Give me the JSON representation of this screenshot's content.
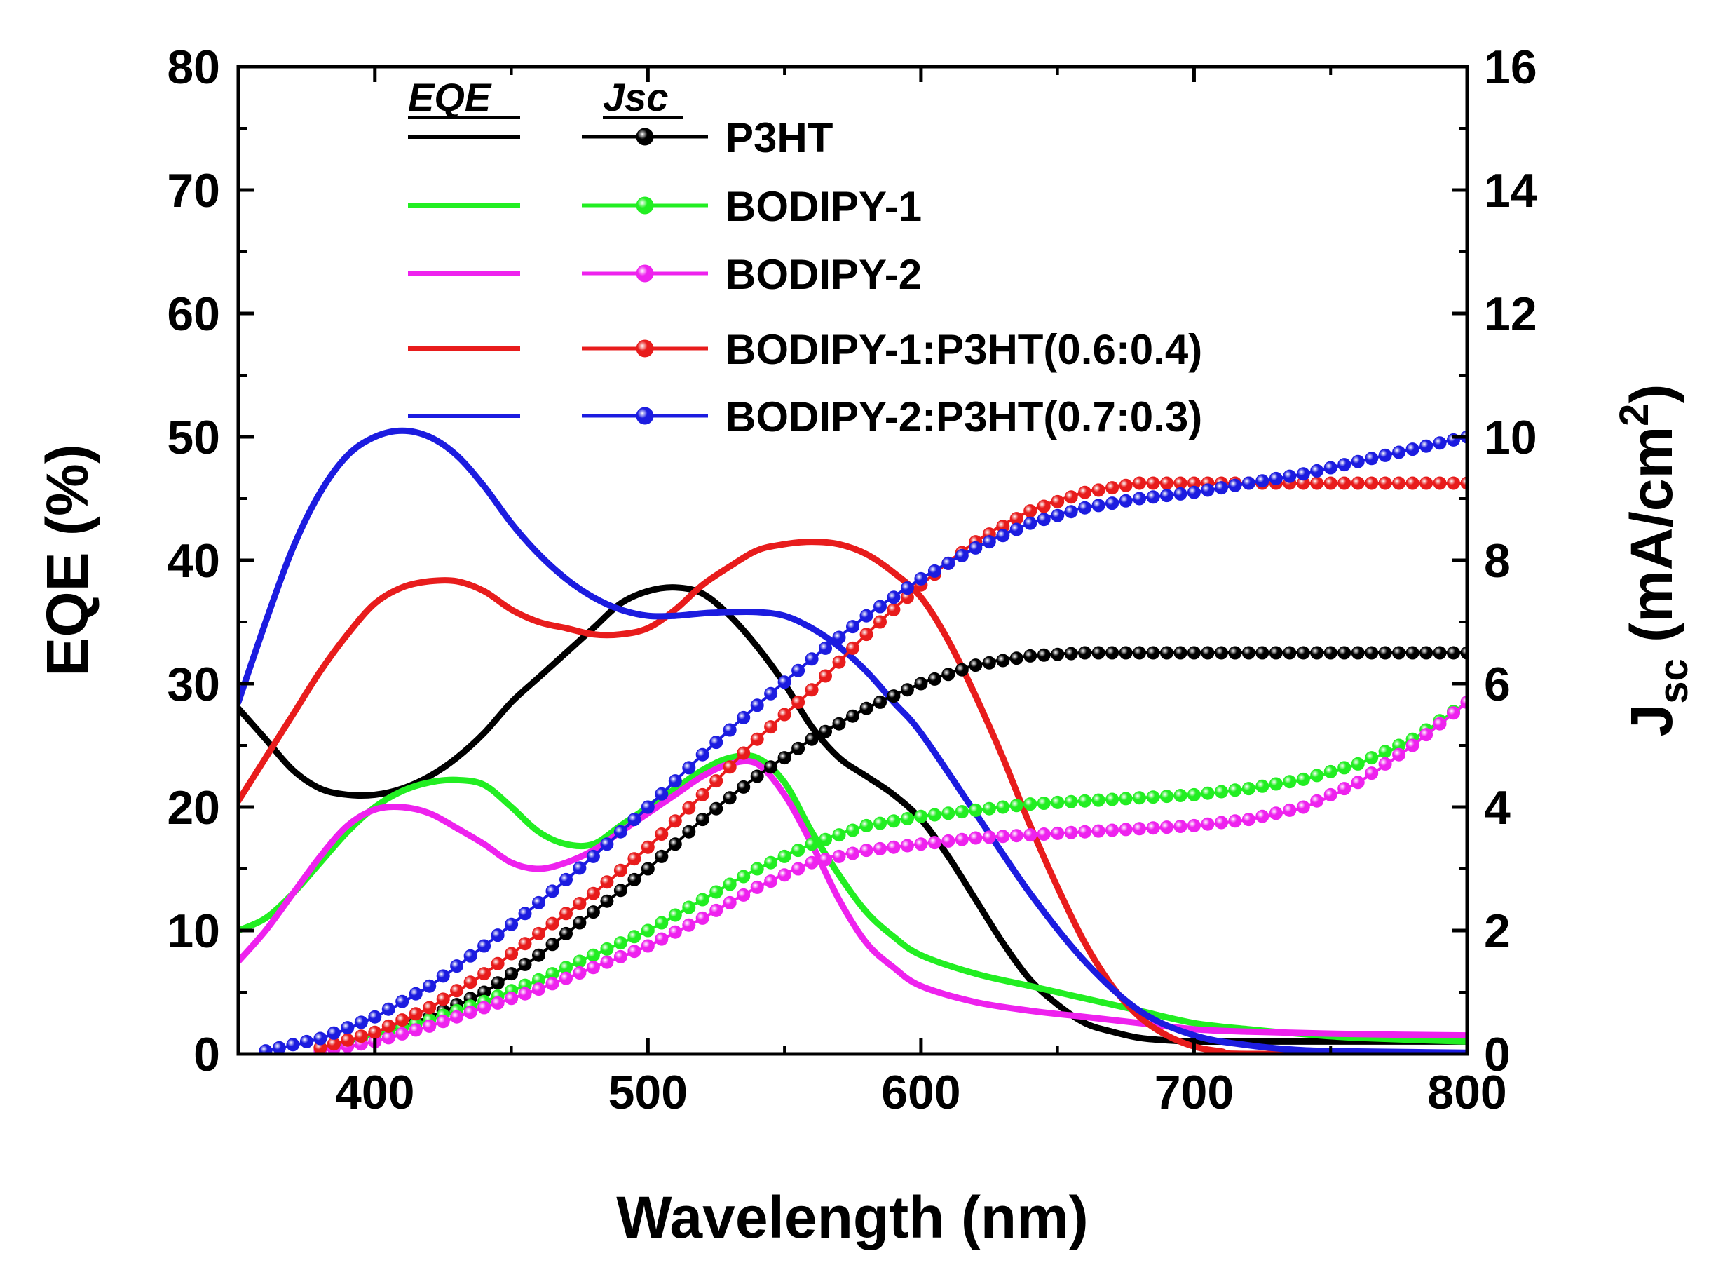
{
  "chart_data": {
    "type": "line",
    "xlabel": "Wavelength (nm)",
    "ylabel": "EQE (%)",
    "y2label": {
      "main": "J",
      "sub": "sc",
      "paren_open": " (mA/cm",
      "sup": "2",
      "paren_close": ")"
    },
    "xlim": [
      350,
      800
    ],
    "ylim": [
      0,
      80
    ],
    "y2lim": [
      0,
      16
    ],
    "xticks": [
      400,
      500,
      600,
      700,
      800
    ],
    "yticks": [
      0,
      10,
      20,
      30,
      40,
      50,
      60,
      70,
      80
    ],
    "y2ticks": [
      0,
      2,
      4,
      6,
      8,
      10,
      12,
      14,
      16
    ],
    "legend": {
      "position": "top-left",
      "eqe_header": "EQE",
      "jsc_header": "Jsc"
    },
    "series": [
      {
        "name": "P3HT",
        "color": "#000000",
        "eqe": {
          "x": [
            350,
            360,
            370,
            380,
            390,
            400,
            410,
            420,
            430,
            440,
            450,
            460,
            470,
            480,
            490,
            500,
            510,
            520,
            530,
            540,
            550,
            560,
            570,
            580,
            590,
            600,
            610,
            620,
            630,
            640,
            650,
            660,
            670,
            680,
            690,
            700,
            720,
            800
          ],
          "y": [
            28,
            25.5,
            23,
            21.5,
            21,
            21,
            21.5,
            22.5,
            24,
            26,
            28.5,
            30.5,
            32.5,
            34.5,
            36.5,
            37.5,
            37.8,
            37.3,
            35.5,
            33,
            30,
            26.5,
            24,
            22.5,
            21,
            19,
            16,
            12.5,
            9,
            6,
            4,
            2.5,
            1.8,
            1.3,
            1.1,
            1,
            1,
            1
          ]
        },
        "jsc": {
          "x": [
            380,
            400,
            420,
            440,
            460,
            480,
            500,
            520,
            540,
            560,
            580,
            600,
            620,
            640,
            660,
            680,
            700,
            720,
            740,
            760,
            780,
            800
          ],
          "y": [
            0.1,
            0.3,
            0.6,
            1.0,
            1.6,
            2.3,
            3.0,
            3.8,
            4.5,
            5.1,
            5.6,
            6.0,
            6.3,
            6.45,
            6.5,
            6.5,
            6.5,
            6.5,
            6.5,
            6.5,
            6.5,
            6.5
          ]
        }
      },
      {
        "name": "BODIPY-1",
        "color": "#22ee22",
        "eqe": {
          "x": [
            350,
            360,
            370,
            380,
            390,
            400,
            410,
            420,
            430,
            440,
            450,
            460,
            470,
            480,
            490,
            500,
            510,
            520,
            530,
            540,
            550,
            560,
            570,
            580,
            590,
            600,
            620,
            640,
            660,
            680,
            700,
            720,
            740,
            760,
            800
          ],
          "y": [
            10,
            11,
            13,
            15.5,
            18,
            20,
            21.3,
            22,
            22.2,
            21.8,
            20,
            18,
            17,
            17,
            18.5,
            20,
            21.5,
            23,
            24,
            24,
            22,
            18,
            14.5,
            11.5,
            9.5,
            8,
            6.5,
            5.5,
            4.5,
            3.5,
            2.5,
            2,
            1.6,
            1.3,
            1
          ]
        },
        "jsc": {
          "x": [
            380,
            400,
            420,
            440,
            460,
            480,
            500,
            520,
            540,
            560,
            580,
            600,
            620,
            640,
            660,
            680,
            700,
            720,
            740,
            760,
            780,
            800
          ],
          "y": [
            0.1,
            0.3,
            0.55,
            0.85,
            1.2,
            1.6,
            2.0,
            2.5,
            3.0,
            3.4,
            3.7,
            3.85,
            3.95,
            4.05,
            4.1,
            4.15,
            4.2,
            4.3,
            4.45,
            4.7,
            5.1,
            5.7
          ]
        }
      },
      {
        "name": "BODIPY-2",
        "color": "#ee22ee",
        "eqe": {
          "x": [
            350,
            360,
            370,
            380,
            390,
            400,
            410,
            420,
            430,
            440,
            450,
            460,
            470,
            480,
            490,
            500,
            510,
            520,
            530,
            540,
            550,
            560,
            570,
            580,
            590,
            600,
            620,
            640,
            660,
            680,
            700,
            720,
            760,
            800
          ],
          "y": [
            7.5,
            10,
            13,
            16,
            18.5,
            19.8,
            20,
            19.5,
            18.3,
            17,
            15.5,
            15,
            15.5,
            16.5,
            18,
            19.5,
            21,
            22.5,
            23.5,
            23.5,
            21,
            17,
            12.5,
            9,
            7,
            5.5,
            4.2,
            3.5,
            3,
            2.5,
            2,
            1.8,
            1.6,
            1.5
          ]
        },
        "jsc": {
          "x": [
            380,
            400,
            420,
            440,
            460,
            480,
            500,
            520,
            540,
            560,
            580,
            600,
            620,
            640,
            660,
            680,
            700,
            720,
            740,
            760,
            780,
            800
          ],
          "y": [
            0.05,
            0.2,
            0.45,
            0.75,
            1.05,
            1.4,
            1.75,
            2.2,
            2.7,
            3.1,
            3.3,
            3.4,
            3.5,
            3.55,
            3.6,
            3.65,
            3.7,
            3.8,
            4.0,
            4.4,
            5.0,
            5.7
          ]
        }
      },
      {
        "name": "BODIPY-1:P3HT(0.6:0.4)",
        "color": "#e81c1c",
        "eqe": {
          "x": [
            350,
            360,
            370,
            380,
            390,
            400,
            410,
            420,
            430,
            440,
            450,
            460,
            470,
            480,
            490,
            500,
            510,
            520,
            530,
            540,
            550,
            560,
            570,
            580,
            590,
            600,
            610,
            620,
            630,
            640,
            650,
            660,
            670,
            680,
            690,
            700,
            710,
            720,
            800
          ],
          "y": [
            20.5,
            24,
            27.5,
            31,
            34,
            36.5,
            37.8,
            38.3,
            38.3,
            37.5,
            36,
            35,
            34.5,
            34,
            34,
            34.5,
            36,
            38,
            39.5,
            40.8,
            41.3,
            41.5,
            41.3,
            40.5,
            39,
            37,
            33.5,
            29,
            24,
            18.5,
            13.5,
            9,
            5.5,
            3,
            1.5,
            0.6,
            0.2,
            0,
            0
          ]
        },
        "jsc": {
          "x": [
            380,
            400,
            420,
            440,
            460,
            480,
            500,
            520,
            540,
            560,
            580,
            600,
            620,
            640,
            660,
            680,
            700,
            720,
            740,
            760,
            780,
            800
          ],
          "y": [
            0.1,
            0.35,
            0.75,
            1.3,
            1.95,
            2.6,
            3.35,
            4.2,
            5.1,
            5.9,
            6.8,
            7.6,
            8.3,
            8.8,
            9.1,
            9.25,
            9.25,
            9.25,
            9.25,
            9.25,
            9.25,
            9.25
          ]
        }
      },
      {
        "name": "BODIPY-2:P3HT(0.7:0.3)",
        "color": "#1c1ce0",
        "eqe": {
          "x": [
            350,
            360,
            370,
            380,
            390,
            400,
            410,
            420,
            430,
            440,
            450,
            460,
            470,
            480,
            490,
            500,
            510,
            520,
            530,
            540,
            550,
            560,
            570,
            580,
            590,
            600,
            620,
            640,
            660,
            680,
            700,
            720,
            740,
            760,
            780,
            800
          ],
          "y": [
            28.5,
            35,
            41,
            45.5,
            48.5,
            50,
            50.5,
            50,
            48.5,
            46,
            43,
            40.5,
            38.5,
            37,
            36,
            35.5,
            35.5,
            35.7,
            35.8,
            35.8,
            35.5,
            34.5,
            33,
            31,
            28.5,
            26,
            19.5,
            13,
            7.5,
            3.5,
            1.5,
            0.7,
            0.3,
            0.2,
            0.15,
            0.1
          ]
        },
        "jsc": {
          "x": [
            360,
            380,
            400,
            420,
            440,
            460,
            480,
            500,
            520,
            540,
            560,
            580,
            600,
            620,
            640,
            660,
            680,
            700,
            720,
            740,
            760,
            780,
            800
          ],
          "y": [
            0.05,
            0.25,
            0.6,
            1.1,
            1.75,
            2.45,
            3.2,
            4.0,
            4.85,
            5.65,
            6.4,
            7.1,
            7.7,
            8.2,
            8.6,
            8.85,
            9.0,
            9.1,
            9.25,
            9.4,
            9.6,
            9.8,
            10.0
          ]
        }
      }
    ]
  }
}
